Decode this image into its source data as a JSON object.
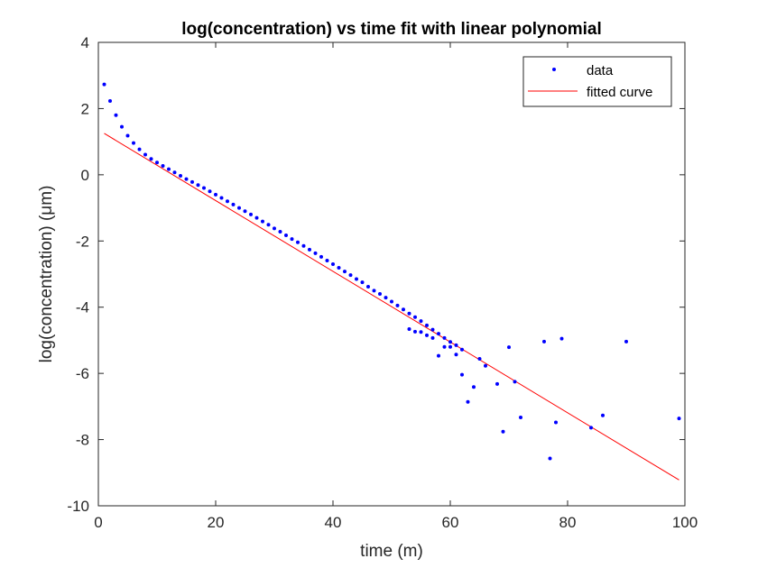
{
  "chart_data": {
    "type": "scatter",
    "title": "log(concentration) vs time fit with linear polynomial",
    "xlabel": "time (m)",
    "ylabel": "log(concentration) (μm)",
    "xlim": [
      0,
      100
    ],
    "ylim": [
      -10,
      4
    ],
    "x_ticks": [
      0,
      20,
      40,
      60,
      80,
      100
    ],
    "x_tick_labels": [
      "0",
      "20",
      "40",
      "60",
      "80",
      "100"
    ],
    "y_ticks": [
      4,
      2,
      0,
      -2,
      -4,
      -6,
      -8,
      -10
    ],
    "y_tick_labels": [
      "4",
      "2",
      "0",
      "-2",
      "-4",
      "-6",
      "-8",
      "-10"
    ],
    "grid": false,
    "legend_position": "top-right",
    "series": [
      {
        "name": "data",
        "style": "markers",
        "color": "#0000ff",
        "points": [
          [
            1,
            2.73
          ],
          [
            2,
            2.23
          ],
          [
            3,
            1.8
          ],
          [
            4,
            1.45
          ],
          [
            5,
            1.18
          ],
          [
            6,
            0.96
          ],
          [
            7,
            0.77
          ],
          [
            8,
            0.61
          ],
          [
            9,
            0.48
          ],
          [
            10,
            0.37
          ],
          [
            11,
            0.27
          ],
          [
            12,
            0.17
          ],
          [
            13,
            0.07
          ],
          [
            14,
            -0.03
          ],
          [
            15,
            -0.13
          ],
          [
            16,
            -0.22
          ],
          [
            17,
            -0.31
          ],
          [
            18,
            -0.4
          ],
          [
            19,
            -0.5
          ],
          [
            20,
            -0.6
          ],
          [
            21,
            -0.7
          ],
          [
            22,
            -0.8
          ],
          [
            23,
            -0.9
          ],
          [
            24,
            -1.0
          ],
          [
            25,
            -1.1
          ],
          [
            26,
            -1.2
          ],
          [
            27,
            -1.3
          ],
          [
            28,
            -1.41
          ],
          [
            29,
            -1.51
          ],
          [
            30,
            -1.62
          ],
          [
            31,
            -1.72
          ],
          [
            32,
            -1.83
          ],
          [
            33,
            -1.94
          ],
          [
            34,
            -2.04
          ],
          [
            35,
            -2.15
          ],
          [
            36,
            -2.26
          ],
          [
            37,
            -2.37
          ],
          [
            38,
            -2.48
          ],
          [
            39,
            -2.59
          ],
          [
            40,
            -2.7
          ],
          [
            41,
            -2.81
          ],
          [
            42,
            -2.92
          ],
          [
            43,
            -3.03
          ],
          [
            44,
            -3.15
          ],
          [
            45,
            -3.25
          ],
          [
            46,
            -3.38
          ],
          [
            47,
            -3.5
          ],
          [
            48,
            -3.6
          ],
          [
            49,
            -3.71
          ],
          [
            50,
            -3.83
          ],
          [
            51,
            -3.95
          ],
          [
            52,
            -4.07
          ],
          [
            53,
            -4.19
          ],
          [
            54,
            -4.3
          ],
          [
            55,
            -4.42
          ],
          [
            56,
            -4.55
          ],
          [
            57,
            -4.68
          ],
          [
            58,
            -4.8
          ],
          [
            59,
            -4.93
          ],
          [
            60,
            -5.05
          ],
          [
            61,
            -5.15
          ],
          [
            62,
            -5.28
          ],
          [
            53,
            -4.66
          ],
          [
            54,
            -4.74
          ],
          [
            55,
            -4.75
          ],
          [
            56,
            -4.85
          ],
          [
            57,
            -4.93
          ],
          [
            58,
            -5.47
          ],
          [
            59,
            -5.2
          ],
          [
            60,
            -5.2
          ],
          [
            61,
            -5.43
          ],
          [
            62,
            -6.04
          ],
          [
            63,
            -6.86
          ],
          [
            64,
            -6.41
          ],
          [
            65,
            -5.56
          ],
          [
            66,
            -5.77
          ],
          [
            68,
            -6.32
          ],
          [
            69,
            -7.76
          ],
          [
            70,
            -5.21
          ],
          [
            71,
            -6.25
          ],
          [
            72,
            -7.33
          ],
          [
            76,
            -5.04
          ],
          [
            77,
            -8.57
          ],
          [
            78,
            -7.48
          ],
          [
            79,
            -4.95
          ],
          [
            84,
            -7.64
          ],
          [
            86,
            -7.27
          ],
          [
            90,
            -5.04
          ],
          [
            99,
            -7.36
          ]
        ]
      },
      {
        "name": "fitted curve",
        "style": "line",
        "color": "#ff0000",
        "points": [
          [
            1,
            1.25
          ],
          [
            99,
            -9.22
          ]
        ]
      }
    ]
  }
}
